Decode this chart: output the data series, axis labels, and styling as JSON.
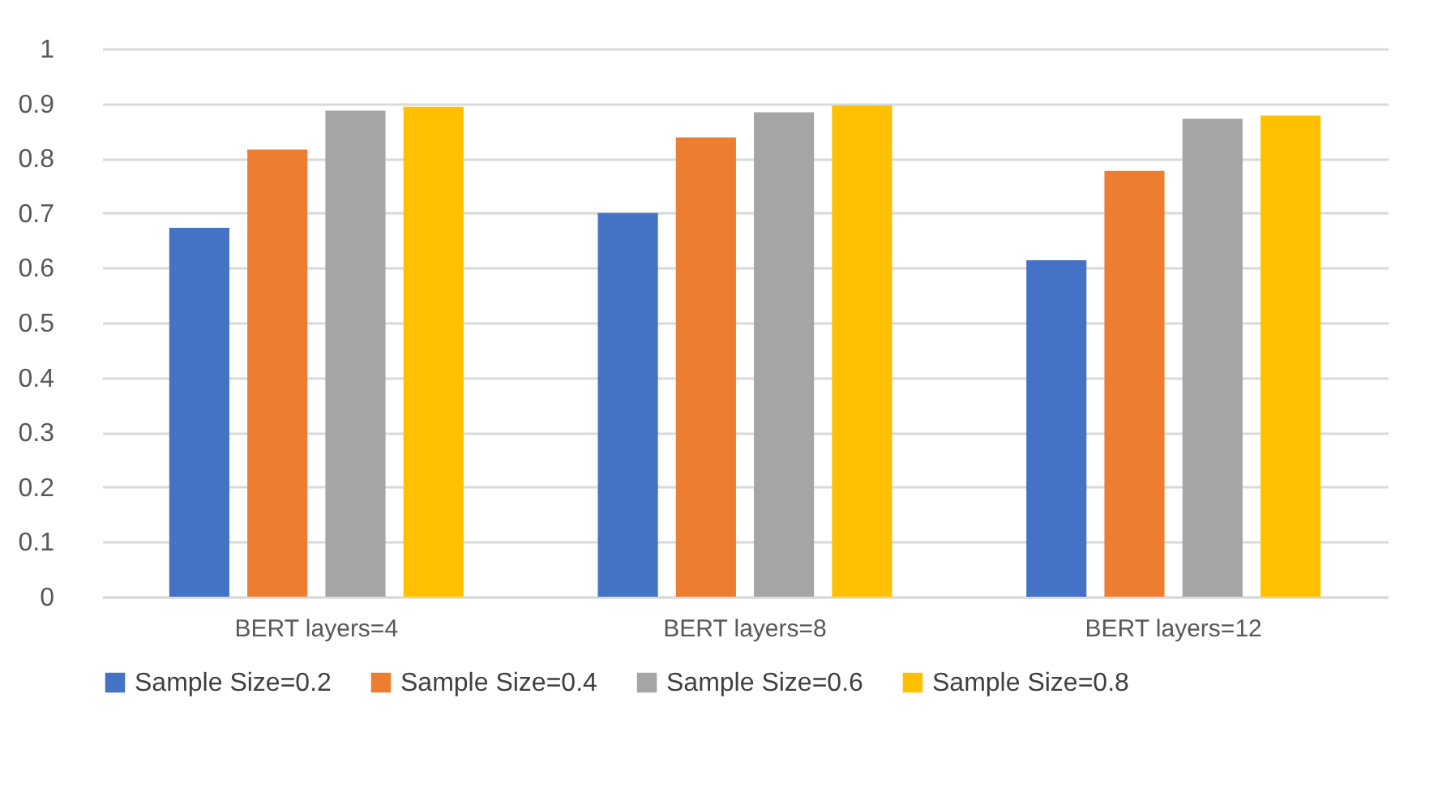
{
  "chart_data": {
    "type": "bar",
    "categories": [
      "BERT layers=4",
      "BERT layers=8",
      "BERT layers=12"
    ],
    "series": [
      {
        "name": "Sample Size=0.2",
        "color": "#4472c4",
        "values": [
          0.673,
          0.7,
          0.614
        ]
      },
      {
        "name": "Sample Size=0.4",
        "color": "#ed7d31",
        "values": [
          0.816,
          0.838,
          0.777
        ]
      },
      {
        "name": "Sample Size=0.6",
        "color": "#a5a5a5",
        "values": [
          0.887,
          0.884,
          0.872
        ]
      },
      {
        "name": "Sample Size=0.8",
        "color": "#ffc000",
        "values": [
          0.894,
          0.896,
          0.878
        ]
      }
    ],
    "ylim": [
      0,
      1
    ],
    "yticks": [
      0,
      0.1,
      0.2,
      0.3,
      0.4,
      0.5,
      0.6,
      0.7,
      0.8,
      0.9,
      1
    ],
    "grid": "y",
    "legend": "bottom"
  }
}
